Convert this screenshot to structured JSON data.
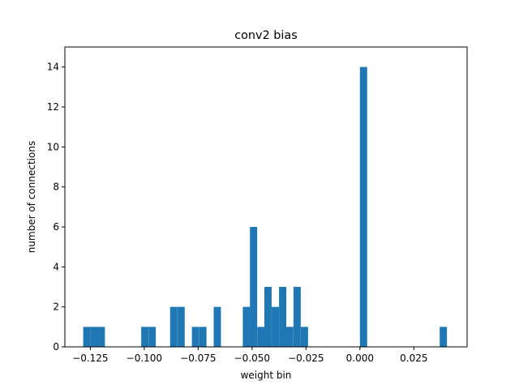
{
  "chart_data": {
    "type": "bar",
    "title": "conv2 bias",
    "xlabel": "weight bin",
    "ylabel": "number of connections",
    "xlim": [
      -0.1368,
      0.0497
    ],
    "ylim": [
      0,
      15
    ],
    "bar_color": "#1f77b4",
    "bin_width": 0.00336,
    "x_ticks": [
      {
        "value": -0.125,
        "label": "−0.125"
      },
      {
        "value": -0.1,
        "label": "−0.100"
      },
      {
        "value": -0.075,
        "label": "−0.075"
      },
      {
        "value": -0.05,
        "label": "−0.050"
      },
      {
        "value": -0.025,
        "label": "−0.025"
      },
      {
        "value": 0.0,
        "label": "0.000"
      },
      {
        "value": 0.025,
        "label": "0.025"
      }
    ],
    "y_ticks": [
      {
        "value": 0,
        "label": "0"
      },
      {
        "value": 2,
        "label": "2"
      },
      {
        "value": 4,
        "label": "4"
      },
      {
        "value": 6,
        "label": "6"
      },
      {
        "value": 8,
        "label": "8"
      },
      {
        "value": 10,
        "label": "10"
      },
      {
        "value": 12,
        "label": "12"
      },
      {
        "value": 14,
        "label": "14"
      }
    ],
    "bins": [
      {
        "x": -0.1283,
        "count": 1
      },
      {
        "x": -0.1249,
        "count": 1
      },
      {
        "x": -0.1216,
        "count": 1
      },
      {
        "x": -0.1014,
        "count": 1
      },
      {
        "x": -0.098,
        "count": 1
      },
      {
        "x": -0.088,
        "count": 2
      },
      {
        "x": -0.0846,
        "count": 2
      },
      {
        "x": -0.0779,
        "count": 1
      },
      {
        "x": -0.0745,
        "count": 1
      },
      {
        "x": -0.0678,
        "count": 2
      },
      {
        "x": -0.0543,
        "count": 2
      },
      {
        "x": -0.051,
        "count": 6
      },
      {
        "x": -0.0476,
        "count": 1
      },
      {
        "x": -0.0443,
        "count": 3
      },
      {
        "x": -0.0409,
        "count": 2
      },
      {
        "x": -0.0375,
        "count": 3
      },
      {
        "x": -0.0342,
        "count": 1
      },
      {
        "x": -0.0308,
        "count": 3
      },
      {
        "x": -0.0274,
        "count": 1
      },
      {
        "x": 0.0,
        "count": 14
      },
      {
        "x": 0.037,
        "count": 1
      }
    ]
  }
}
